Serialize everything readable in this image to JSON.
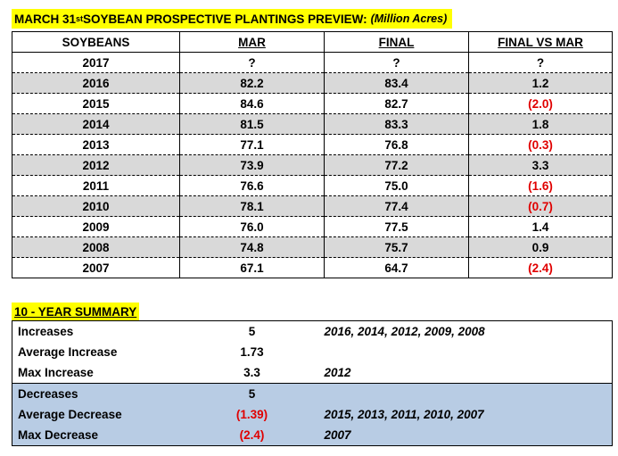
{
  "title": {
    "prefix": "MARCH 31",
    "suffix": "st",
    "main": " SOYBEAN PROSPECTIVE PLANTINGS PREVIEW:",
    "units": "(Million Acres)"
  },
  "table": {
    "headers": [
      "SOYBEANS",
      "MAR",
      "FINAL",
      "FINAL VS MAR"
    ],
    "rows": [
      {
        "year": "2017",
        "mar": "?",
        "final": "?",
        "diff": "?",
        "negative": false,
        "shaded": false
      },
      {
        "year": "2016",
        "mar": "82.2",
        "final": "83.4",
        "diff": "1.2",
        "negative": false,
        "shaded": true
      },
      {
        "year": "2015",
        "mar": "84.6",
        "final": "82.7",
        "diff": "(2.0)",
        "negative": true,
        "shaded": false
      },
      {
        "year": "2014",
        "mar": "81.5",
        "final": "83.3",
        "diff": "1.8",
        "negative": false,
        "shaded": true
      },
      {
        "year": "2013",
        "mar": "77.1",
        "final": "76.8",
        "diff": "(0.3)",
        "negative": true,
        "shaded": false
      },
      {
        "year": "2012",
        "mar": "73.9",
        "final": "77.2",
        "diff": "3.3",
        "negative": false,
        "shaded": true
      },
      {
        "year": "2011",
        "mar": "76.6",
        "final": "75.0",
        "diff": "(1.6)",
        "negative": true,
        "shaded": false
      },
      {
        "year": "2010",
        "mar": "78.1",
        "final": "77.4",
        "diff": "(0.7)",
        "negative": true,
        "shaded": true
      },
      {
        "year": "2009",
        "mar": "76.0",
        "final": "77.5",
        "diff": "1.4",
        "negative": false,
        "shaded": false
      },
      {
        "year": "2008",
        "mar": "74.8",
        "final": "75.7",
        "diff": "0.9",
        "negative": false,
        "shaded": true
      },
      {
        "year": "2007",
        "mar": "67.1",
        "final": "64.7",
        "diff": "(2.4)",
        "negative": true,
        "shaded": false
      }
    ]
  },
  "summary": {
    "title": "10 - YEAR SUMMARY",
    "rows": [
      {
        "label": "Increases",
        "value": "5",
        "years": "2016, 2014, 2012, 2009, 2008",
        "negative": false,
        "shaded": false
      },
      {
        "label": "Average Increase",
        "value": "1.73",
        "years": "",
        "negative": false,
        "shaded": false
      },
      {
        "label": "Max Increase",
        "value": "3.3",
        "years": "2012",
        "negative": false,
        "shaded": false
      },
      {
        "label": "Decreases",
        "value": "5",
        "years": "",
        "negative": false,
        "shaded": true
      },
      {
        "label": "Average Decrease",
        "value": "(1.39)",
        "years": "2015, 2013, 2011, 2010, 2007",
        "negative": true,
        "shaded": true
      },
      {
        "label": "Max Decrease",
        "value": "(2.4)",
        "years": "2007",
        "negative": true,
        "shaded": true
      }
    ]
  },
  "colors": {
    "highlight": "#ffff00",
    "row_shade": "#d9d9d9",
    "decrease_shade": "#b8cce4",
    "negative_text": "#e00000"
  }
}
